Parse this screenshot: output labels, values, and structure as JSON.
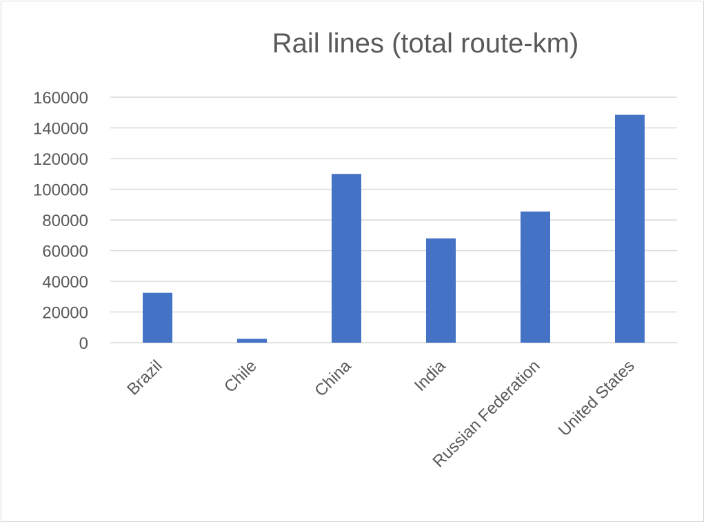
{
  "chart_data": {
    "type": "bar",
    "title": "Rail lines (total route-km)",
    "xlabel": "",
    "ylabel": "",
    "categories": [
      "Brazil",
      "Chile",
      "China",
      "India",
      "Russian Federation",
      "United States"
    ],
    "series": [
      {
        "values": [
          32500,
          2500,
          110000,
          68000,
          85500,
          148500
        ],
        "color": "#4472c4"
      }
    ],
    "ylim": [
      0,
      160000
    ],
    "yticks": [
      0,
      20000,
      40000,
      60000,
      80000,
      100000,
      120000,
      140000,
      160000
    ],
    "ytick_labels": [
      "0",
      "20000",
      "40000",
      "60000",
      "80000",
      "100000",
      "120000",
      "140000",
      "160000"
    ],
    "grid": true,
    "legend": "none"
  }
}
